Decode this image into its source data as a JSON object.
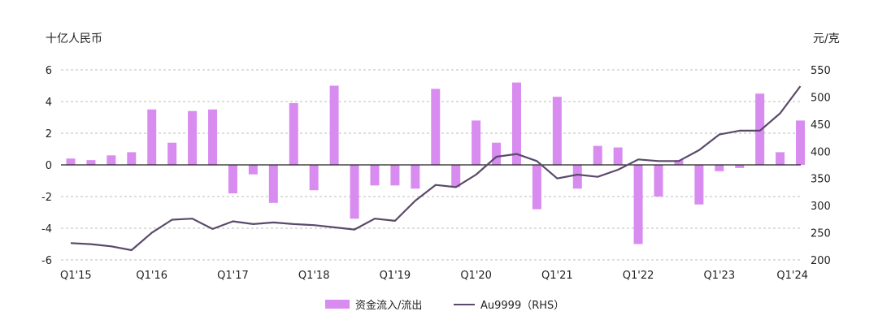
{
  "chart_data": {
    "type": "bar+line",
    "left_unit": "十亿人民币",
    "right_unit": "元/克",
    "left_ylim": [
      -6,
      6
    ],
    "left_ticks": [
      "6",
      "4",
      "2",
      "0",
      "-2",
      "-4",
      "-6"
    ],
    "right_ylim": [
      200,
      550
    ],
    "right_ticks": [
      "550",
      "500",
      "450",
      "400",
      "350",
      "300",
      "250",
      "200"
    ],
    "x_tick_labels": [
      "Q1'15",
      "Q1'16",
      "Q1'17",
      "Q1'18",
      "Q1'19",
      "Q1'20",
      "Q1'21",
      "Q1'22",
      "Q1'23",
      "Q1'24"
    ],
    "categories": [
      "Q1'15",
      "Q2'15",
      "Q3'15",
      "Q4'15",
      "Q1'16",
      "Q2'16",
      "Q3'16",
      "Q4'16",
      "Q1'17",
      "Q2'17",
      "Q3'17",
      "Q4'17",
      "Q1'18",
      "Q2'18",
      "Q3'18",
      "Q4'18",
      "Q1'19",
      "Q2'19",
      "Q3'19",
      "Q4'19",
      "Q1'20",
      "Q2'20",
      "Q3'20",
      "Q4'20",
      "Q1'21",
      "Q2'21",
      "Q3'21",
      "Q4'21",
      "Q1'22",
      "Q2'22",
      "Q3'22",
      "Q4'22",
      "Q1'23",
      "Q2'23",
      "Q3'23",
      "Q4'23",
      "Q1'24"
    ],
    "grid": "dashed-horizontal",
    "legend_position": "bottom",
    "series": [
      {
        "name": "资金流入/流出",
        "type": "bar",
        "axis": "left",
        "color": "#d98cf0",
        "values": [
          0.4,
          0.3,
          0.6,
          0.8,
          3.5,
          1.4,
          3.4,
          3.5,
          -1.8,
          -0.6,
          -2.4,
          3.9,
          -1.6,
          5.0,
          -3.4,
          -1.3,
          -1.3,
          -1.5,
          4.8,
          -1.4,
          2.8,
          1.4,
          5.2,
          -2.8,
          4.3,
          -1.5,
          1.2,
          1.1,
          -5.0,
          -2.0,
          0.3,
          -2.5,
          -0.4,
          -0.2,
          4.5,
          0.8,
          2.8
        ]
      },
      {
        "name": "Au9999（RHS）",
        "type": "line",
        "axis": "right",
        "color": "#5a4a6a",
        "values": [
          231,
          229,
          225,
          218,
          250,
          274,
          276,
          257,
          271,
          266,
          269,
          266,
          264,
          260,
          256,
          276,
          272,
          309,
          338,
          334,
          357,
          390,
          395,
          382,
          350,
          357,
          353,
          366,
          385,
          382,
          382,
          402,
          431,
          438,
          438,
          470,
          520
        ]
      }
    ]
  }
}
